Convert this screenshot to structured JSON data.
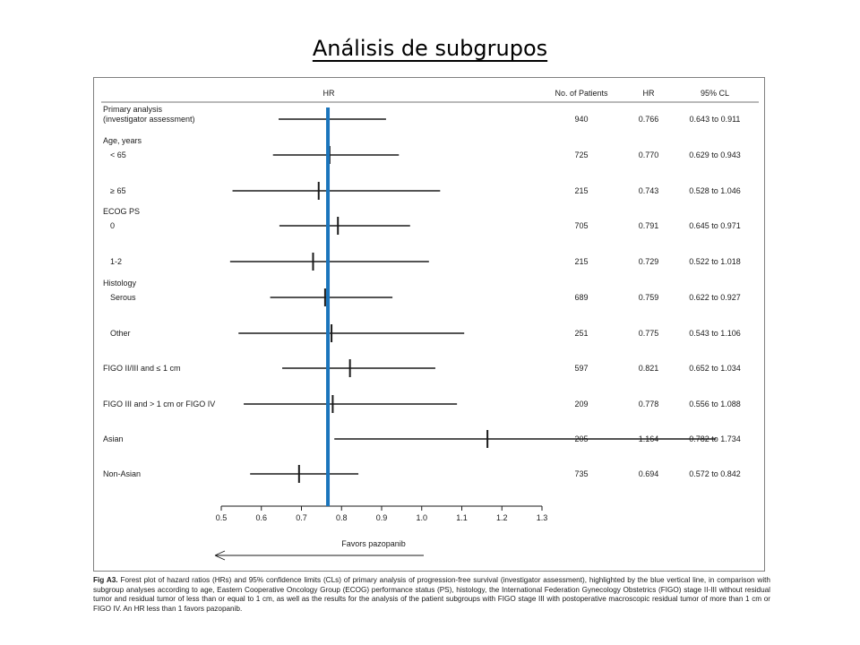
{
  "slide": {
    "title": "Análisis de subgrupos"
  },
  "columns": {
    "hr_plot": "HR",
    "patients": "No. of Patients",
    "hr": "HR",
    "ci": "95% CL"
  },
  "caption": {
    "fig_label": "Fig A3.",
    "text": "Forest plot of hazard ratios (HRs) and 95% confidence limits (CLs) of primary analysis of progression-free survival (investigator assessment), highlighted by the blue vertical line, in comparison with subgroup analyses according to age, Eastern Cooperative Oncology Group (ECOG) performance status (PS), histology, the International Federation Gynecology Obstetrics (FIGO) stage II-III without residual tumor and residual tumor of less than or equal to 1 cm, as well as the results for the analysis of the patient subgroups with FIGO stage III with postoperative macroscopic residual tumor of more than 1 cm or FIGO IV. An HR less than 1 favors pazopanib."
  },
  "chart_data": {
    "type": "forest",
    "xlim": [
      0.5,
      1.3
    ],
    "x_ticks": [
      "0.5",
      "0.6",
      "0.7",
      "0.8",
      "0.9",
      "1.0",
      "1.1",
      "1.2",
      "1.3"
    ],
    "x_tick_values": [
      0.5,
      0.6,
      0.7,
      0.8,
      0.9,
      1.0,
      1.1,
      1.2,
      1.3
    ],
    "reference_line": {
      "value": 0.766,
      "color": "#1b75bc"
    },
    "axis_annotation": "Favors pazopanib",
    "rows": [
      {
        "group": "Primary analysis",
        "group2": "(investigator assessment)",
        "label": "",
        "patients": "940",
        "hr_text": "0.766",
        "ci_text": "0.643 to 0.911",
        "hr": 0.766,
        "lo": 0.643,
        "hi": 0.911
      },
      {
        "group": "Age, years",
        "label": "< 65",
        "patients": "725",
        "hr_text": "0.770",
        "ci_text": "0.629 to 0.943",
        "hr": 0.77,
        "lo": 0.629,
        "hi": 0.943
      },
      {
        "group": "",
        "label": "≥ 65",
        "patients": "215",
        "hr_text": "0.743",
        "ci_text": "0.528 to 1.046",
        "hr": 0.743,
        "lo": 0.528,
        "hi": 1.046
      },
      {
        "group": "ECOG PS",
        "label": "0",
        "patients": "705",
        "hr_text": "0.791",
        "ci_text": "0.645 to 0.971",
        "hr": 0.791,
        "lo": 0.645,
        "hi": 0.971
      },
      {
        "group": "",
        "label": "1-2",
        "patients": "215",
        "hr_text": "0.729",
        "ci_text": "0.522 to 1.018",
        "hr": 0.729,
        "lo": 0.522,
        "hi": 1.018
      },
      {
        "group": "Histology",
        "label": "Serous",
        "patients": "689",
        "hr_text": "0.759",
        "ci_text": "0.622 to 0.927",
        "hr": 0.759,
        "lo": 0.622,
        "hi": 0.927
      },
      {
        "group": "",
        "label": "Other",
        "patients": "251",
        "hr_text": "0.775",
        "ci_text": "0.543 to 1.106",
        "hr": 0.775,
        "lo": 0.543,
        "hi": 1.106
      },
      {
        "group": "FIGO II/III and ≤ 1 cm",
        "label": "",
        "patients": "597",
        "hr_text": "0.821",
        "ci_text": "0.652 to 1.034",
        "hr": 0.821,
        "lo": 0.652,
        "hi": 1.034
      },
      {
        "group": "FIGO III and > 1 cm or FIGO IV",
        "label": "",
        "patients": "209",
        "hr_text": "0.778",
        "ci_text": "0.556 to 1.088",
        "hr": 0.778,
        "lo": 0.556,
        "hi": 1.088
      },
      {
        "group": "Asian",
        "label": "",
        "patients": "205",
        "hr_text": "1.164",
        "ci_text": "0.782 to 1.734",
        "hr": 1.164,
        "lo": 0.782,
        "hi": 1.734
      },
      {
        "group": "Non-Asian",
        "label": "",
        "patients": "735",
        "hr_text": "0.694",
        "ci_text": "0.572 to 0.842",
        "hr": 0.694,
        "lo": 0.572,
        "hi": 0.842
      }
    ]
  }
}
